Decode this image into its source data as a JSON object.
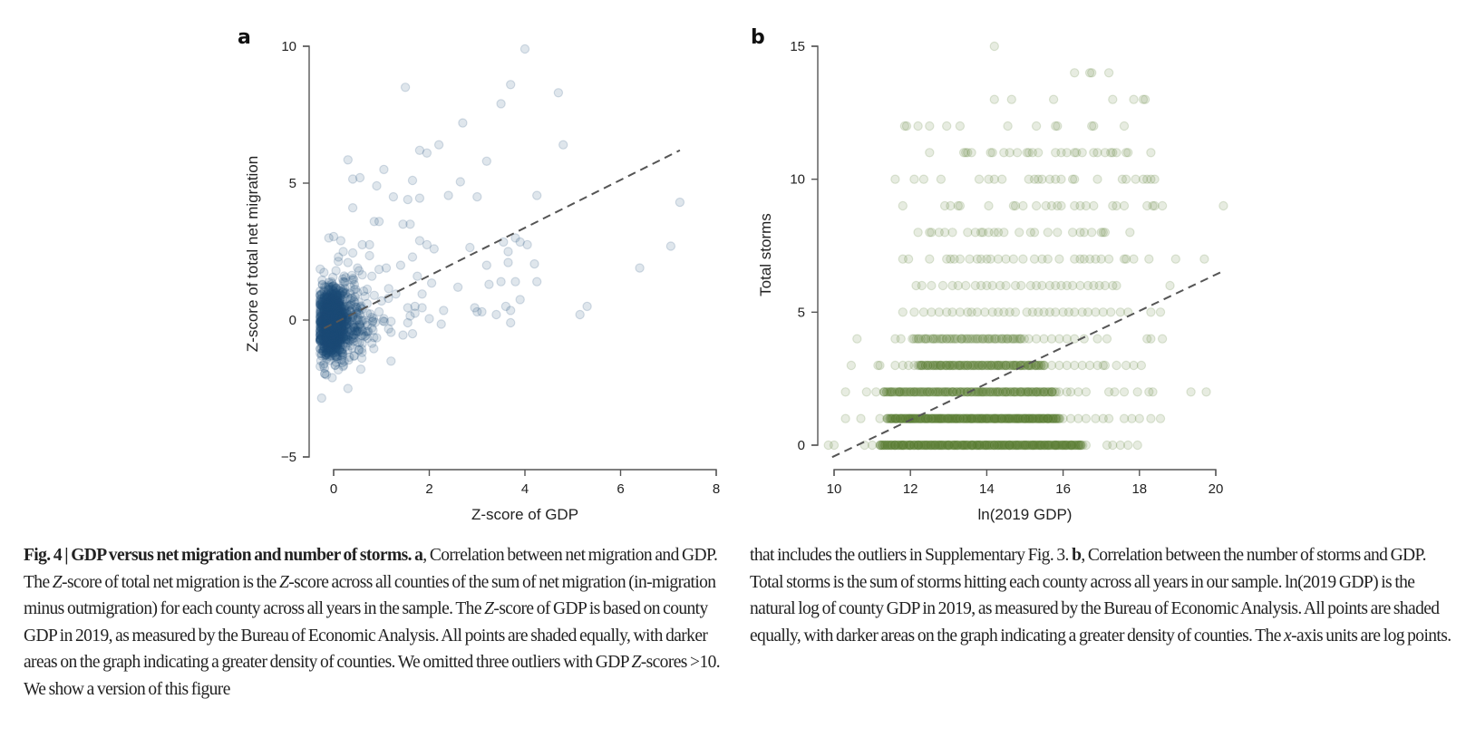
{
  "figure": {
    "panel_a_label": "a",
    "panel_b_label": "b"
  },
  "caption": {
    "fig_number": "Fig. 4",
    "separator": " | ",
    "title": "GDP versus net migration and number of storms.",
    "a_marker": "a",
    "left_segments": [
      ", Correlation between net migration and GDP. The ",
      "Z",
      "-score of total net migration is the ",
      "Z",
      "-score across all counties of the sum of net migration (in-migration minus outmigration) for each county across all years in the sample. The ",
      "Z",
      "-score of GDP is based on county GDP in 2019, as measured by the Bureau of Economic Analysis. All points are shaded equally, with darker areas on the graph indicating a greater density of counties. We omitted three outliers with GDP ",
      "Z",
      "-scores >10. We show a version of this figure"
    ],
    "right_pre": "that includes the outliers in Supplementary Fig. 3. ",
    "b_marker": "b",
    "right_mid": ", Correlation between the number of storms and GDP. Total storms is the sum of storms hitting each county across all years in our sample. ln(2019 GDP) is the natural log of county GDP in 2019, as measured by the Bureau of Economic Analysis. All points are shaded equally, with darker areas on the graph indicating a greater density of counties. The ",
    "right_italic": "x",
    "right_post": "-axis units are log points."
  },
  "chart_data": [
    {
      "type": "scatter",
      "panel": "a",
      "title": "",
      "xlabel": "Z-score of GDP",
      "ylabel": "Z-score of total net migration",
      "xlim": [
        0,
        8
      ],
      "ylim": [
        -5,
        10
      ],
      "xticks": [
        0,
        2,
        4,
        6,
        8
      ],
      "xtick_labels": [
        "0",
        "2",
        "4",
        "6",
        "8"
      ],
      "yticks": [
        -5,
        0,
        5,
        10
      ],
      "ytick_labels": [
        "−5",
        "0",
        "5",
        "10"
      ],
      "grid": false,
      "legend": "none",
      "marker_color": "#1f4e79",
      "marker_alpha": 0.14,
      "fit_line": {
        "style": "dashed",
        "color": "#555555",
        "x": [
          -0.2,
          7.24
        ],
        "y": [
          -0.3,
          6.2
        ]
      },
      "points": [
        [
          4.0,
          9.9
        ],
        [
          1.5,
          8.5
        ],
        [
          3.7,
          8.6
        ],
        [
          4.7,
          8.3
        ],
        [
          3.5,
          7.9
        ],
        [
          2.7,
          7.2
        ],
        [
          4.8,
          6.4
        ],
        [
          2.2,
          6.4
        ],
        [
          1.8,
          6.2
        ],
        [
          1.95,
          6.1
        ],
        [
          0.3,
          5.85
        ],
        [
          1.05,
          5.5
        ],
        [
          3.2,
          5.8
        ],
        [
          0.4,
          5.15
        ],
        [
          0.55,
          5.2
        ],
        [
          1.65,
          5.1
        ],
        [
          2.65,
          5.05
        ],
        [
          0.9,
          4.9
        ],
        [
          4.25,
          4.55
        ],
        [
          1.25,
          4.5
        ],
        [
          1.55,
          4.4
        ],
        [
          1.8,
          4.45
        ],
        [
          2.4,
          4.55
        ],
        [
          3.0,
          4.5
        ],
        [
          0.4,
          4.1
        ],
        [
          7.24,
          4.3
        ],
        [
          0.85,
          3.6
        ],
        [
          0.95,
          3.6
        ],
        [
          1.45,
          3.5
        ],
        [
          1.6,
          3.5
        ],
        [
          -0.1,
          3.0
        ],
        [
          0.0,
          3.05
        ],
        [
          0.15,
          2.9
        ],
        [
          0.6,
          2.75
        ],
        [
          0.75,
          2.75
        ],
        [
          1.8,
          2.9
        ],
        [
          1.95,
          2.75
        ],
        [
          2.1,
          2.6
        ],
        [
          2.85,
          2.65
        ],
        [
          3.55,
          2.85
        ],
        [
          3.8,
          3.0
        ],
        [
          3.9,
          2.85
        ],
        [
          4.05,
          2.75
        ],
        [
          3.65,
          2.5
        ],
        [
          7.05,
          2.7
        ],
        [
          0.2,
          2.5
        ],
        [
          0.4,
          2.45
        ],
        [
          0.75,
          2.35
        ],
        [
          1.65,
          2.3
        ],
        [
          1.4,
          2.0
        ],
        [
          3.2,
          2.0
        ],
        [
          3.65,
          2.1
        ],
        [
          4.2,
          2.05
        ],
        [
          6.4,
          1.9
        ],
        [
          1.1,
          1.9
        ],
        [
          0.95,
          1.85
        ],
        [
          0.6,
          1.65
        ],
        [
          0.8,
          1.6
        ],
        [
          1.75,
          1.6
        ],
        [
          2.05,
          1.35
        ],
        [
          3.25,
          1.3
        ],
        [
          3.5,
          1.4
        ],
        [
          3.8,
          1.4
        ],
        [
          4.25,
          1.4
        ],
        [
          2.6,
          1.2
        ],
        [
          1.15,
          1.15
        ],
        [
          0.5,
          1.0
        ],
        [
          1.3,
          0.95
        ],
        [
          1.85,
          0.95
        ],
        [
          3.9,
          0.75
        ],
        [
          1.55,
          0.45
        ],
        [
          1.7,
          0.5
        ],
        [
          1.85,
          0.45
        ],
        [
          2.95,
          0.45
        ],
        [
          3.6,
          0.5
        ],
        [
          5.3,
          0.5
        ],
        [
          2.3,
          0.35
        ],
        [
          3.0,
          0.3
        ],
        [
          3.1,
          0.3
        ],
        [
          3.4,
          0.2
        ],
        [
          3.7,
          0.35
        ],
        [
          5.15,
          0.2
        ],
        [
          1.6,
          0.15
        ],
        [
          1.7,
          0.25
        ],
        [
          2.0,
          0.05
        ],
        [
          1.55,
          -0.1
        ],
        [
          1.2,
          -0.05
        ],
        [
          2.25,
          -0.15
        ],
        [
          3.7,
          -0.1
        ],
        [
          0.9,
          -0.65
        ],
        [
          1.2,
          -0.45
        ],
        [
          1.45,
          -0.55
        ],
        [
          1.65,
          -0.5
        ],
        [
          0.65,
          -0.6
        ],
        [
          0.8,
          -0.85
        ],
        [
          0.15,
          -1.3
        ],
        [
          1.2,
          -1.5
        ],
        [
          -0.05,
          -1.3
        ],
        [
          -0.2,
          -1.6
        ],
        [
          -0.15,
          -2.0
        ],
        [
          0.3,
          -2.5
        ],
        [
          -0.25,
          -2.85
        ],
        [
          0.55,
          0.2
        ],
        [
          0.7,
          0.6
        ],
        [
          0.85,
          0.9
        ],
        [
          1.0,
          0.7
        ],
        [
          0.45,
          0.85
        ],
        [
          0.35,
          1.2
        ],
        [
          0.25,
          1.55
        ],
        [
          0.5,
          1.9
        ],
        [
          0.3,
          2.1
        ],
        [
          0.1,
          2.3
        ],
        [
          0.05,
          1.8
        ],
        [
          0.2,
          1.4
        ],
        [
          0.6,
          0.4
        ],
        [
          0.4,
          0.1
        ],
        [
          0.25,
          -0.2
        ],
        [
          0.45,
          -0.4
        ],
        [
          0.7,
          -0.2
        ],
        [
          0.95,
          0.3
        ],
        [
          1.05,
          0.05
        ],
        [
          0.35,
          0.55
        ],
        [
          0.15,
          0.8
        ],
        [
          0.55,
          -0.15
        ],
        [
          0.8,
          0.1
        ],
        [
          0.3,
          -0.6
        ],
        [
          0.15,
          -0.9
        ],
        [
          0.05,
          -1.0
        ]
      ],
      "dense_cluster": {
        "x_center": -0.05,
        "x_spread": 0.12,
        "y_center": -0.1,
        "y_spread": 0.55,
        "count": 1800
      }
    },
    {
      "type": "scatter",
      "panel": "b",
      "title": "",
      "xlabel": "ln(2019 GDP)",
      "ylabel": "Total storms",
      "xlim": [
        10,
        20
      ],
      "ylim": [
        0,
        15
      ],
      "xticks": [
        10,
        12,
        14,
        16,
        18,
        20
      ],
      "xtick_labels": [
        "10",
        "12",
        "14",
        "16",
        "18",
        "20"
      ],
      "yticks": [
        0,
        5,
        10,
        15
      ],
      "ytick_labels": [
        "0",
        "5",
        "10",
        "15"
      ],
      "grid": false,
      "legend": "none",
      "marker_color": "#557a2e",
      "marker_alpha": 0.14,
      "fit_line": {
        "style": "dashed",
        "color": "#555555",
        "x": [
          9.95,
          20.2
        ],
        "y": [
          -0.45,
          6.55
        ]
      },
      "rows": [
        {
          "storms": 15,
          "x": [
            14.2
          ]
        },
        {
          "storms": 14,
          "x": [
            16.3,
            16.7,
            16.75,
            17.2
          ]
        },
        {
          "storms": 13,
          "x": [
            14.2,
            14.65,
            15.75,
            17.3,
            17.85,
            18.1,
            18.15
          ]
        },
        {
          "storms": 12,
          "x": [
            11.85,
            11.9,
            12.2,
            12.5,
            12.95,
            13.3,
            14.55,
            15.3,
            15.8,
            15.85,
            16.75,
            16.8,
            17.6
          ]
        },
        {
          "storms": 11,
          "x": [
            12.5,
            13.4,
            13.45,
            13.5,
            13.6,
            14.1,
            14.15,
            14.45,
            14.6,
            14.8,
            15.05,
            15.1,
            15.2,
            15.35,
            15.8,
            15.95,
            16.1,
            16.3,
            16.35,
            16.5,
            16.8,
            16.9,
            17.1,
            17.25,
            17.3,
            17.4,
            17.65,
            17.7,
            18.3
          ]
        },
        {
          "storms": 10,
          "x": [
            11.6,
            12.1,
            12.35,
            12.8,
            13.8,
            14.05,
            14.2,
            14.4,
            15.1,
            15.25,
            15.35,
            15.45,
            15.65,
            15.8,
            15.95,
            16.25,
            16.3,
            16.9,
            17.55,
            17.65,
            17.9,
            18.1,
            18.2,
            18.3,
            18.4
          ]
        },
        {
          "storms": 9,
          "x": [
            11.8,
            12.9,
            13.05,
            13.25,
            13.3,
            14.05,
            14.7,
            14.75,
            14.95,
            15.3,
            15.55,
            15.7,
            15.85,
            15.95,
            16.3,
            16.45,
            16.6,
            16.8,
            17.3,
            17.4,
            17.6,
            18.2,
            18.35,
            18.4,
            18.6,
            20.2
          ]
        },
        {
          "storms": 8,
          "x": [
            12.2,
            12.5,
            12.55,
            12.75,
            12.9,
            13.1,
            13.5,
            13.7,
            13.85,
            13.9,
            14.05,
            14.2,
            14.3,
            14.45,
            14.85,
            15.15,
            15.25,
            15.6,
            15.85,
            16.25,
            16.45,
            16.55,
            16.75,
            17.0,
            17.05,
            17.1,
            17.75
          ]
        },
        {
          "storms": 7,
          "x": [
            11.8,
            11.95,
            12.5,
            12.95,
            13.05,
            13.15,
            13.3,
            13.55,
            13.75,
            13.85,
            14.0,
            14.1,
            14.3,
            14.5,
            14.7,
            14.95,
            15.25,
            15.45,
            15.6,
            15.9,
            16.3,
            16.45,
            16.55,
            16.7,
            16.85,
            17.0,
            17.2,
            17.6,
            17.65,
            17.85,
            18.25,
            18.95,
            19.7
          ]
        },
        {
          "storms": 6,
          "x": [
            12.15,
            12.3,
            12.55,
            12.85,
            13.1,
            13.25,
            13.45,
            13.7,
            13.85,
            14.0,
            14.15,
            14.35,
            14.5,
            14.75,
            14.9,
            15.15,
            15.3,
            15.45,
            15.65,
            15.8,
            15.95,
            16.1,
            16.25,
            16.45,
            16.65,
            16.8,
            16.95,
            17.1,
            17.3,
            17.4,
            18.8
          ]
        },
        {
          "storms": 5,
          "x": [
            11.8,
            12.1,
            12.35,
            12.55,
            12.75,
            12.95,
            13.1,
            13.3,
            13.5,
            13.6,
            13.75,
            13.95,
            14.15,
            14.3,
            14.45,
            14.6,
            14.75,
            15.05,
            15.2,
            15.35,
            15.5,
            15.65,
            15.8,
            16.0,
            16.15,
            16.3,
            16.5,
            16.65,
            16.85,
            17.05,
            17.25,
            17.5,
            17.7,
            18.3,
            18.55
          ]
        },
        {
          "storms": 4,
          "x": [
            10.6,
            11.6,
            11.75,
            12.05,
            12.2,
            12.4,
            12.6,
            12.8,
            12.95,
            13.15,
            13.35,
            13.5,
            13.7,
            13.9,
            14.05,
            14.2,
            14.4,
            14.55,
            14.7,
            14.85,
            15.1,
            15.3,
            15.5,
            15.7,
            15.9,
            16.1,
            16.3,
            16.55,
            16.9,
            17.15,
            18.2,
            18.3,
            18.6
          ]
        },
        {
          "storms": 3,
          "x": [
            10.45,
            11.15,
            11.2,
            11.6,
            11.8,
            11.95,
            12.1,
            12.3,
            12.45,
            12.65,
            12.8,
            12.95,
            13.1,
            13.3,
            13.5,
            13.7,
            13.9,
            14.1,
            14.3,
            14.5,
            14.7,
            14.9,
            15.1,
            15.3,
            15.5,
            15.7,
            15.9,
            16.1,
            16.3,
            16.5,
            16.7,
            16.9,
            17.05,
            17.1,
            17.4,
            17.65,
            17.85,
            18.05
          ]
        },
        {
          "storms": 2,
          "x": [
            10.3,
            10.85,
            11.1,
            11.3,
            11.5,
            11.7,
            11.9,
            12.1,
            12.3,
            12.5,
            12.7,
            12.9,
            13.1,
            13.3,
            13.5,
            13.7,
            13.9,
            14.1,
            14.3,
            14.5,
            14.7,
            14.9,
            15.1,
            15.3,
            15.5,
            15.7,
            15.9,
            16.1,
            16.2,
            16.4,
            16.6,
            17.2,
            17.35,
            17.6,
            17.95,
            18.25,
            18.35,
            19.35,
            19.75
          ]
        },
        {
          "storms": 1,
          "x": [
            10.3,
            10.7,
            11.2,
            11.4,
            11.6,
            11.8,
            12.0,
            12.2,
            12.4,
            12.6,
            12.8,
            13.0,
            13.2,
            13.4,
            13.6,
            13.8,
            14.0,
            14.2,
            14.4,
            14.6,
            14.8,
            15.0,
            15.2,
            15.4,
            15.6,
            15.8,
            16.0,
            16.2,
            16.4,
            16.6,
            16.85,
            17.05,
            17.2,
            17.6,
            17.8,
            18.0,
            18.3,
            18.55
          ]
        },
        {
          "storms": 0,
          "x": [
            9.85,
            10.0,
            10.8,
            11.0,
            11.2,
            11.4,
            11.6,
            11.8,
            12.0,
            12.2,
            12.4,
            12.6,
            12.8,
            13.0,
            13.2,
            13.4,
            13.6,
            13.8,
            14.0,
            14.2,
            14.4,
            14.6,
            14.8,
            15.0,
            15.2,
            15.4,
            15.6,
            15.8,
            16.0,
            16.2,
            16.4,
            16.6,
            17.15,
            17.3,
            17.5,
            17.7,
            17.95
          ]
        }
      ],
      "dense_ranges": [
        {
          "storms": 0,
          "x_from": 11.2,
          "x_to": 16.5,
          "density": 3
        },
        {
          "storms": 1,
          "x_from": 11.4,
          "x_to": 15.9,
          "density": 3
        },
        {
          "storms": 2,
          "x_from": 11.3,
          "x_to": 15.8,
          "density": 2
        },
        {
          "storms": 3,
          "x_from": 12.2,
          "x_to": 15.5,
          "density": 2
        },
        {
          "storms": 4,
          "x_from": 12.1,
          "x_to": 15.0,
          "density": 1
        }
      ]
    }
  ]
}
